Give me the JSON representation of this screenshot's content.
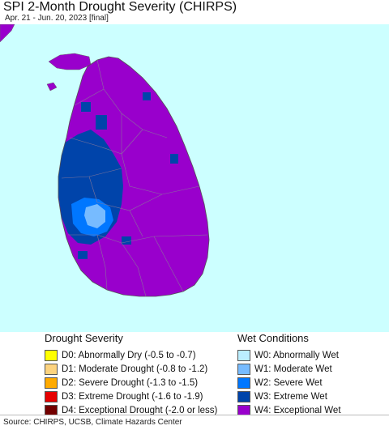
{
  "header": {
    "title": "SPI 2-Month Drought Severity (CHIRPS)",
    "subtitle": "Apr. 21 - Jun. 20, 2023 [final]"
  },
  "map": {
    "ocean_color": "#ccffff",
    "land_primary_color": "#9900cc",
    "country": "Sri Lanka"
  },
  "legend": {
    "drought": {
      "heading": "Drought Severity",
      "items": [
        {
          "label": "D0: Abnormally Dry (-0.5 to -0.7)",
          "color": "#ffff00"
        },
        {
          "label": "D1: Moderate Drought (-0.8 to -1.2)",
          "color": "#fcd37f"
        },
        {
          "label": "D2: Severe Drought (-1.3 to -1.5)",
          "color": "#ffaa00"
        },
        {
          "label": "D3: Extreme Drought (-1.6 to -1.9)",
          "color": "#e60000"
        },
        {
          "label": "D4: Exceptional Drought (-2.0 or less)",
          "color": "#730000"
        }
      ]
    },
    "wet": {
      "heading": "Wet Conditions",
      "items": [
        {
          "label": "W0: Abnormally Wet",
          "color": "#bbeeff"
        },
        {
          "label": "W1: Moderate Wet",
          "color": "#77bbff"
        },
        {
          "label": "W2: Severe Wet",
          "color": "#0077ff"
        },
        {
          "label": "W3: Extreme Wet",
          "color": "#0044aa"
        },
        {
          "label": "W4: Exceptional Wet",
          "color": "#9900cc"
        }
      ]
    }
  },
  "footer": {
    "source": "Source: CHIRPS, UCSB, Climate Hazards Center"
  }
}
